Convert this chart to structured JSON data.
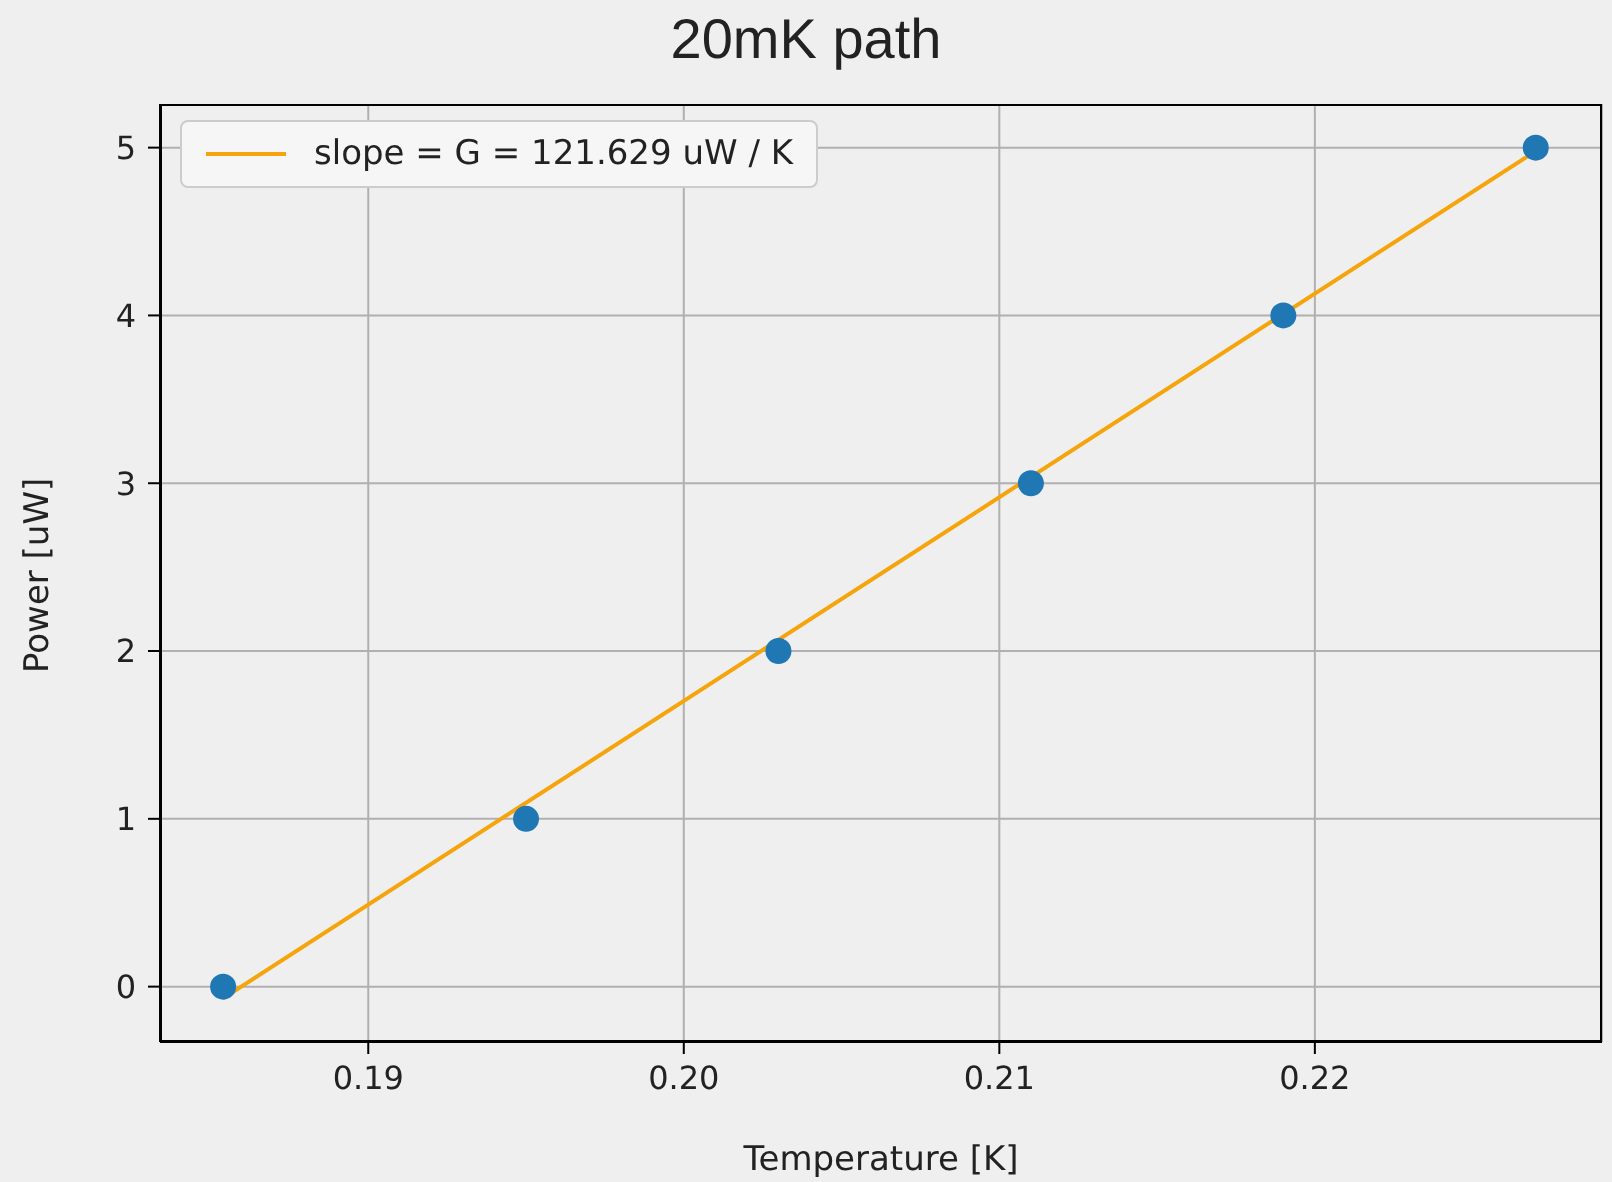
{
  "chart_data": {
    "type": "scatter",
    "title": "20mK path",
    "xlabel": "Temperature [K]",
    "ylabel": "Power [uW]",
    "xlim": [
      0.1834,
      0.2291
    ],
    "ylim": [
      -0.33,
      5.26
    ],
    "xticks": [
      0.19,
      {
        "value": 0.2,
        "label": "0.20"
      },
      0.21,
      0.22
    ],
    "yticks": [
      0,
      1,
      2,
      3,
      4,
      5
    ],
    "grid": true,
    "legend": "top left",
    "series": [
      {
        "color": "#1f77b4",
        "marker": "circle",
        "x": [
          0.1854,
          0.195,
          0.203,
          0.211,
          0.219,
          0.227
        ],
        "values": [
          0,
          1,
          2,
          3,
          4,
          5
        ]
      },
      {
        "type": "line",
        "name": "slope = G = 121.629 uW / K",
        "color": "#f5a40c",
        "marker": "none",
        "line_style": "solid",
        "x": [
          0.1854,
          0.227
        ],
        "values": [
          -0.07,
          4.98
        ]
      }
    ]
  }
}
